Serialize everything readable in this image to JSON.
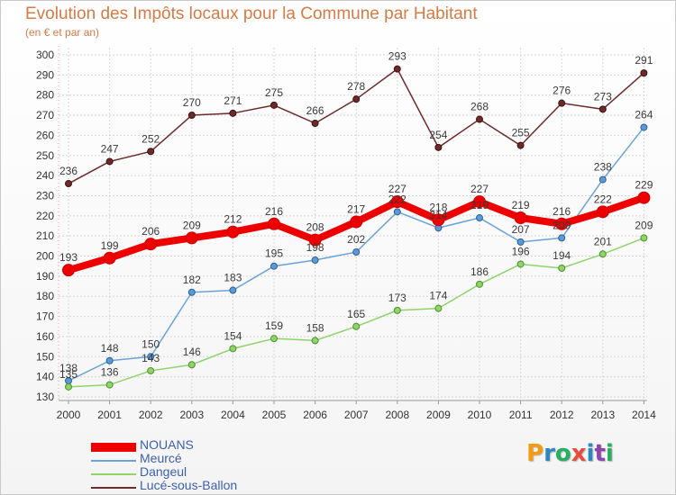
{
  "header": {
    "title": "Evolution des Impôts locaux pour la Commune par Habitant",
    "subtitle": "(en € et par an)"
  },
  "logo": {
    "letters": [
      "P",
      "r",
      "o",
      "x",
      "i",
      "t",
      "i"
    ],
    "colors": [
      "#f39c12",
      "#2e86c1",
      "#27ae60",
      "#e74c3c",
      "#2e86c1",
      "#8e44ad",
      "#27ae60"
    ]
  },
  "chart_data": {
    "type": "line",
    "title": "Evolution des Impôts locaux pour la Commune par Habitant",
    "subtitle": "(en € et par an)",
    "x": [
      "2000",
      "2001",
      "2002",
      "2003",
      "2004",
      "2005",
      "2006",
      "2007",
      "2008",
      "2009",
      "2010",
      "2011",
      "2012",
      "2013",
      "2014"
    ],
    "ylim": [
      130,
      300
    ],
    "yticks": [
      130,
      140,
      150,
      160,
      170,
      180,
      190,
      200,
      210,
      220,
      230,
      240,
      250,
      260,
      270,
      280,
      290,
      300
    ],
    "grid": true,
    "legend_position": "bottom-left",
    "series": [
      {
        "name": "NOUANS",
        "color": "#ee0000",
        "values": [
          193,
          199,
          206,
          209,
          212,
          216,
          208,
          217,
          227,
          218,
          227,
          219,
          216,
          222,
          229
        ]
      },
      {
        "name": "Meurcé",
        "color": "#6aa2d8",
        "values": [
          138,
          148,
          150,
          182,
          183,
          195,
          198,
          202,
          222,
          214,
          219,
          207,
          209,
          238,
          264
        ]
      },
      {
        "name": "Dangeul",
        "color": "#8fd36a",
        "values": [
          135,
          136,
          143,
          146,
          154,
          159,
          158,
          165,
          173,
          174,
          186,
          196,
          194,
          201,
          209
        ]
      },
      {
        "name": "Lucé-sous-Ballon",
        "color": "#6e2a2a",
        "values": [
          236,
          247,
          252,
          270,
          271,
          275,
          266,
          278,
          293,
          254,
          268,
          255,
          276,
          273,
          291
        ]
      }
    ],
    "data_labels": [
      [
        193,
        199,
        206,
        209,
        212,
        216,
        208,
        217,
        227,
        218,
        227,
        219,
        216,
        222,
        229
      ],
      [
        138,
        148,
        150,
        182,
        183,
        195,
        198,
        202,
        222,
        214,
        219,
        207,
        209,
        238,
        264
      ],
      [
        135,
        136,
        143,
        146,
        154,
        159,
        158,
        165,
        173,
        174,
        186,
        196,
        194,
        201,
        209
      ],
      [
        236,
        247,
        252,
        270,
        271,
        275,
        266,
        278,
        293,
        254,
        268,
        255,
        276,
        273,
        291
      ]
    ]
  }
}
